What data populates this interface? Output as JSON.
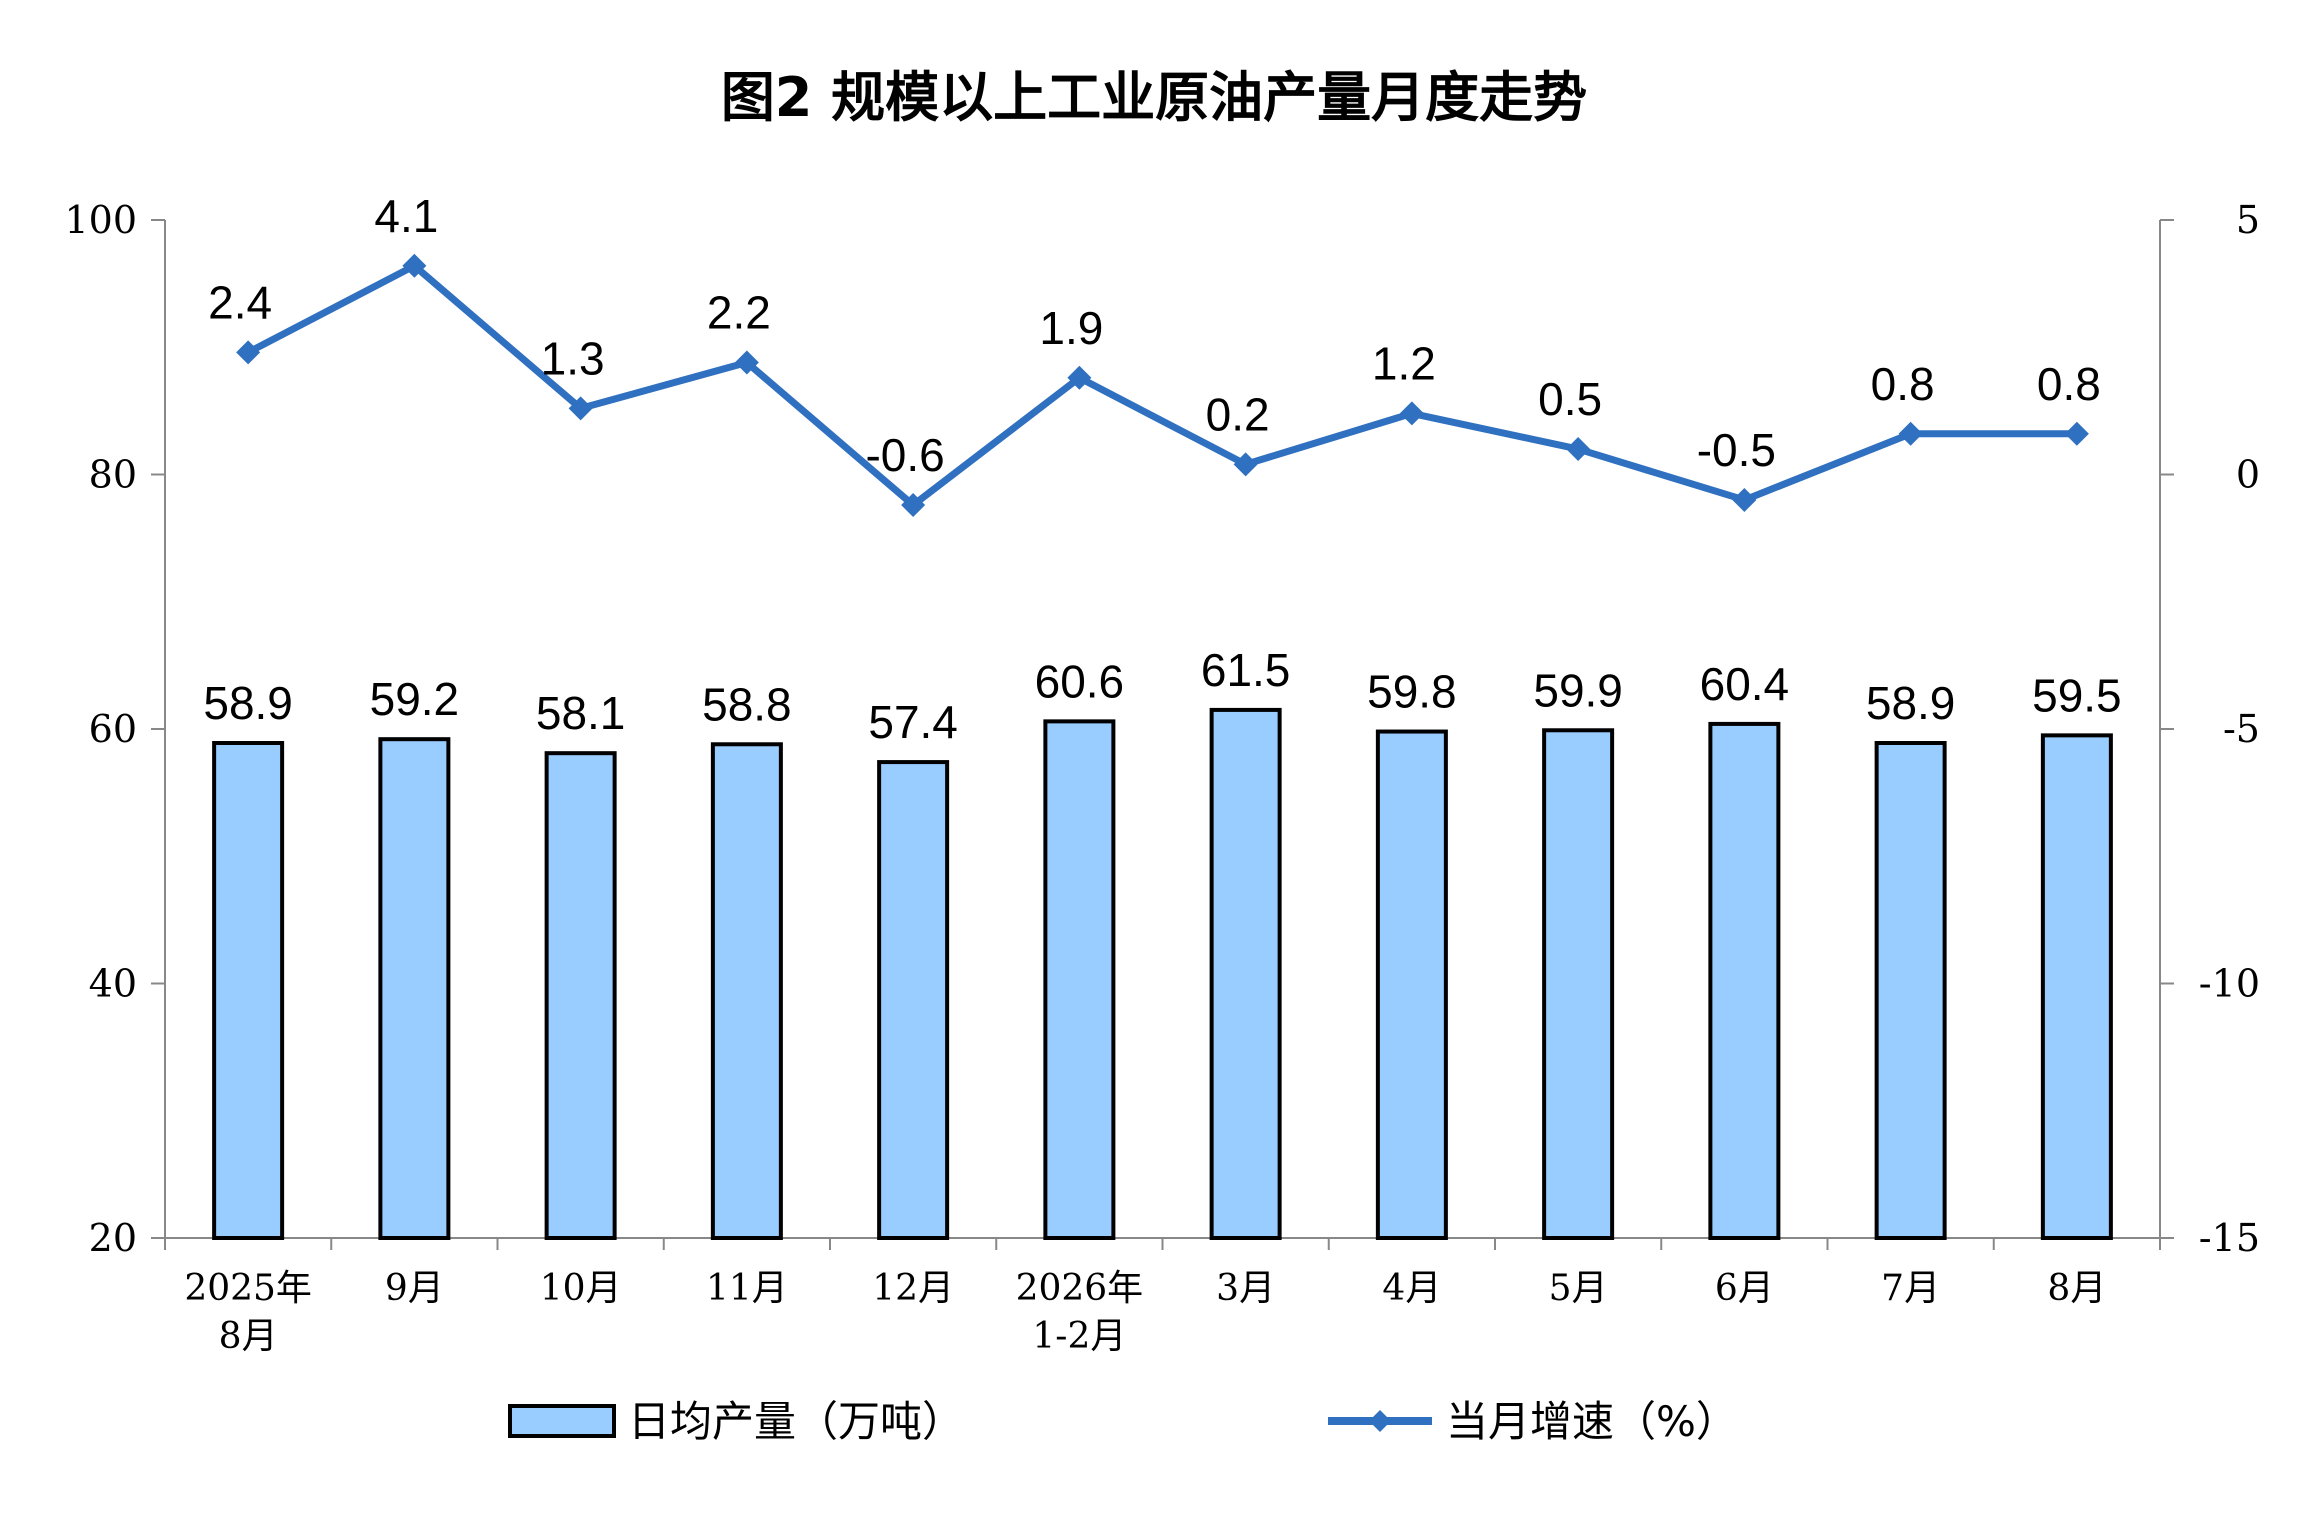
{
  "chart_data": {
    "type": "bar",
    "title": "图2 规模以上工业原油产量月度走势",
    "categories": [
      [
        "2025年",
        "8月"
      ],
      [
        "9月"
      ],
      [
        "10月"
      ],
      [
        "11月"
      ],
      [
        "12月"
      ],
      [
        "2026年",
        "1-2月"
      ],
      [
        "3月"
      ],
      [
        "4月"
      ],
      [
        "5月"
      ],
      [
        "6月"
      ],
      [
        "7月"
      ],
      [
        "8月"
      ]
    ],
    "series": [
      {
        "name": "日均产量（万吨）",
        "type": "bar",
        "axis": "left",
        "color": "#99CCFF",
        "values": [
          58.9,
          59.2,
          58.1,
          58.8,
          57.4,
          60.6,
          61.5,
          59.8,
          59.9,
          60.4,
          58.9,
          59.5
        ],
        "labels": [
          "58.9",
          "59.2",
          "58.1",
          "58.8",
          "57.4",
          "60.6",
          "61.5",
          "59.8",
          "59.9",
          "60.4",
          "58.9",
          "59.5"
        ]
      },
      {
        "name": "当月增速（%）",
        "type": "line",
        "axis": "right",
        "color": "#3070C0",
        "values": [
          2.4,
          4.1,
          1.3,
          2.2,
          -0.6,
          1.9,
          0.2,
          1.2,
          0.5,
          -0.5,
          0.8,
          0.8
        ],
        "labels": [
          "2.4",
          "4.1",
          "1.3",
          "2.2",
          "-0.6",
          "1.9",
          "0.2",
          "1.2",
          "0.5",
          "-0.5",
          "0.8",
          "0.8"
        ]
      }
    ],
    "left_axis": {
      "ylim": [
        20,
        100
      ],
      "ticks": [
        20,
        40,
        60,
        80,
        100
      ],
      "tick_labels": [
        "20",
        "40",
        "60",
        "80",
        "100"
      ]
    },
    "right_axis": {
      "ylim": [
        -15,
        5
      ],
      "ticks": [
        -15,
        -10,
        -5,
        0,
        5
      ],
      "tick_labels": [
        "-15",
        "-10",
        "-5",
        "0",
        "5"
      ]
    },
    "grid": false,
    "legend_position": "bottom"
  }
}
